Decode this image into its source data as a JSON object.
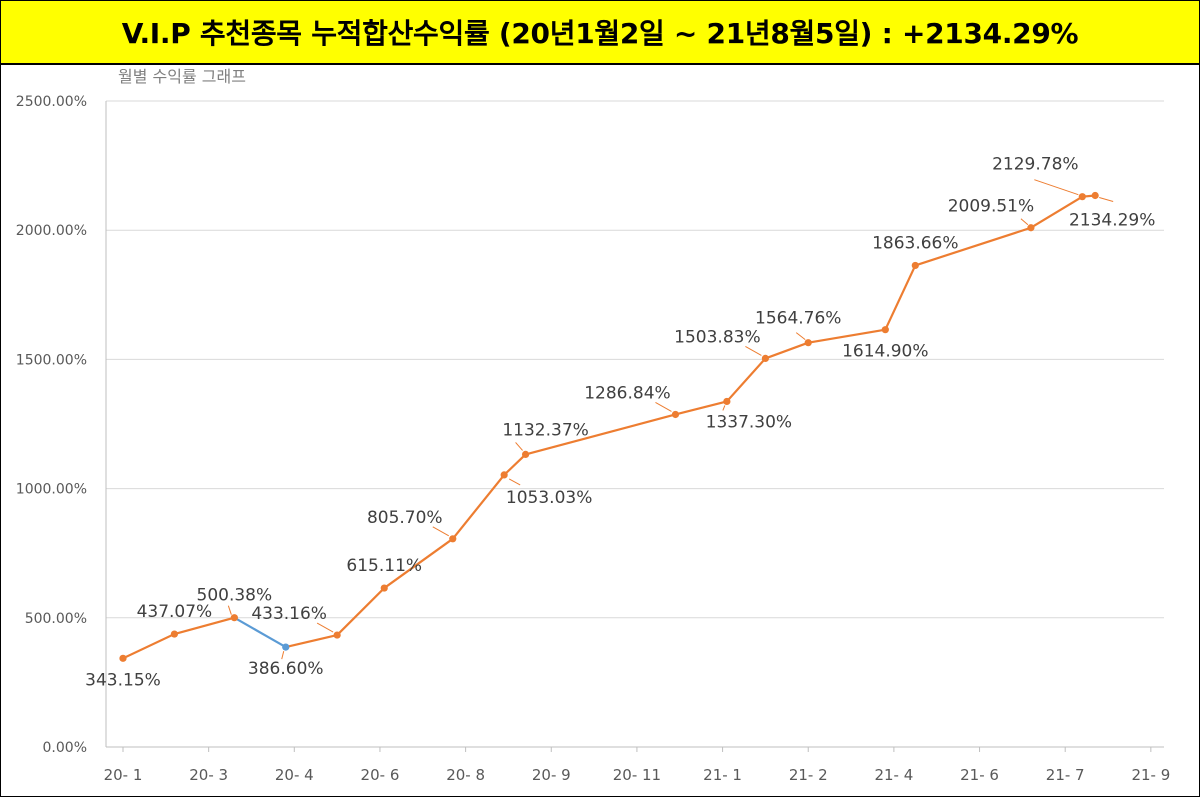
{
  "banner": {
    "title": "V.I.P 추천종목 누적합산수익률 (20년1월2일 ~ 21년8월5일) : +2134.29%",
    "background": "#ffff00"
  },
  "chart_data": {
    "type": "line",
    "title": "월별 수익률 그래프",
    "xlabel": "",
    "ylabel": "",
    "ylim": [
      0,
      2500
    ],
    "y_ticks": [
      0,
      500,
      1000,
      1500,
      2000,
      2500
    ],
    "y_tick_labels": [
      "0.00%",
      "500.00%",
      "1000.00%",
      "1500.00%",
      "2000.00%",
      "2500.00%"
    ],
    "x_ticks": [
      "20- 1",
      "20- 3",
      "20- 4",
      "20- 6",
      "20- 8",
      "20- 9",
      "20- 11",
      "21- 1",
      "21- 2",
      "21- 4",
      "21- 6",
      "21- 7",
      "21- 9"
    ],
    "grid": true,
    "line_color": "#ed7d31",
    "highlight_color": "#5b9bd5",
    "points": [
      {
        "t": 0.0,
        "y": 343.15,
        "label": "343.15%",
        "label_pos": "below"
      },
      {
        "t": 0.6,
        "y": 437.07,
        "label": "437.07%",
        "label_pos": "above"
      },
      {
        "t": 1.3,
        "y": 500.38,
        "label": "500.38%",
        "label_pos": "above"
      },
      {
        "t": 1.9,
        "y": 386.6,
        "label": "386.60%",
        "label_pos": "below"
      },
      {
        "t": 2.5,
        "y": 433.16,
        "label": "433.16%",
        "label_pos": "above-left"
      },
      {
        "t": 3.05,
        "y": 615.11,
        "label": "615.11%",
        "label_pos": "above"
      },
      {
        "t": 3.85,
        "y": 805.7,
        "label": "805.70%",
        "label_pos": "above-left"
      },
      {
        "t": 4.45,
        "y": 1053.03,
        "label": "1053.03%",
        "label_pos": "below-right"
      },
      {
        "t": 4.7,
        "y": 1132.37,
        "label": "1132.37%",
        "label_pos": "above"
      },
      {
        "t": 6.45,
        "y": 1286.84,
        "label": "1286.84%",
        "label_pos": "above-left"
      },
      {
        "t": 7.05,
        "y": 1337.3,
        "label": "1337.30%",
        "label_pos": "below"
      },
      {
        "t": 7.5,
        "y": 1503.83,
        "label": "1503.83%",
        "label_pos": "above-left"
      },
      {
        "t": 8.0,
        "y": 1564.76,
        "label": "1564.76%",
        "label_pos": "above"
      },
      {
        "t": 8.9,
        "y": 1614.9,
        "label": "1614.90%",
        "label_pos": "below"
      },
      {
        "t": 9.25,
        "y": 1863.66,
        "label": "1863.66%",
        "label_pos": "above"
      },
      {
        "t": 10.6,
        "y": 2009.51,
        "label": "2009.51%",
        "label_pos": "above-left"
      },
      {
        "t": 11.2,
        "y": 2129.78,
        "label": "2129.78%",
        "label_pos": "above-left"
      },
      {
        "t": 11.35,
        "y": 2134.29,
        "label": "2134.29%",
        "label_pos": "below-right"
      }
    ],
    "highlight_segment": [
      2,
      3
    ]
  }
}
